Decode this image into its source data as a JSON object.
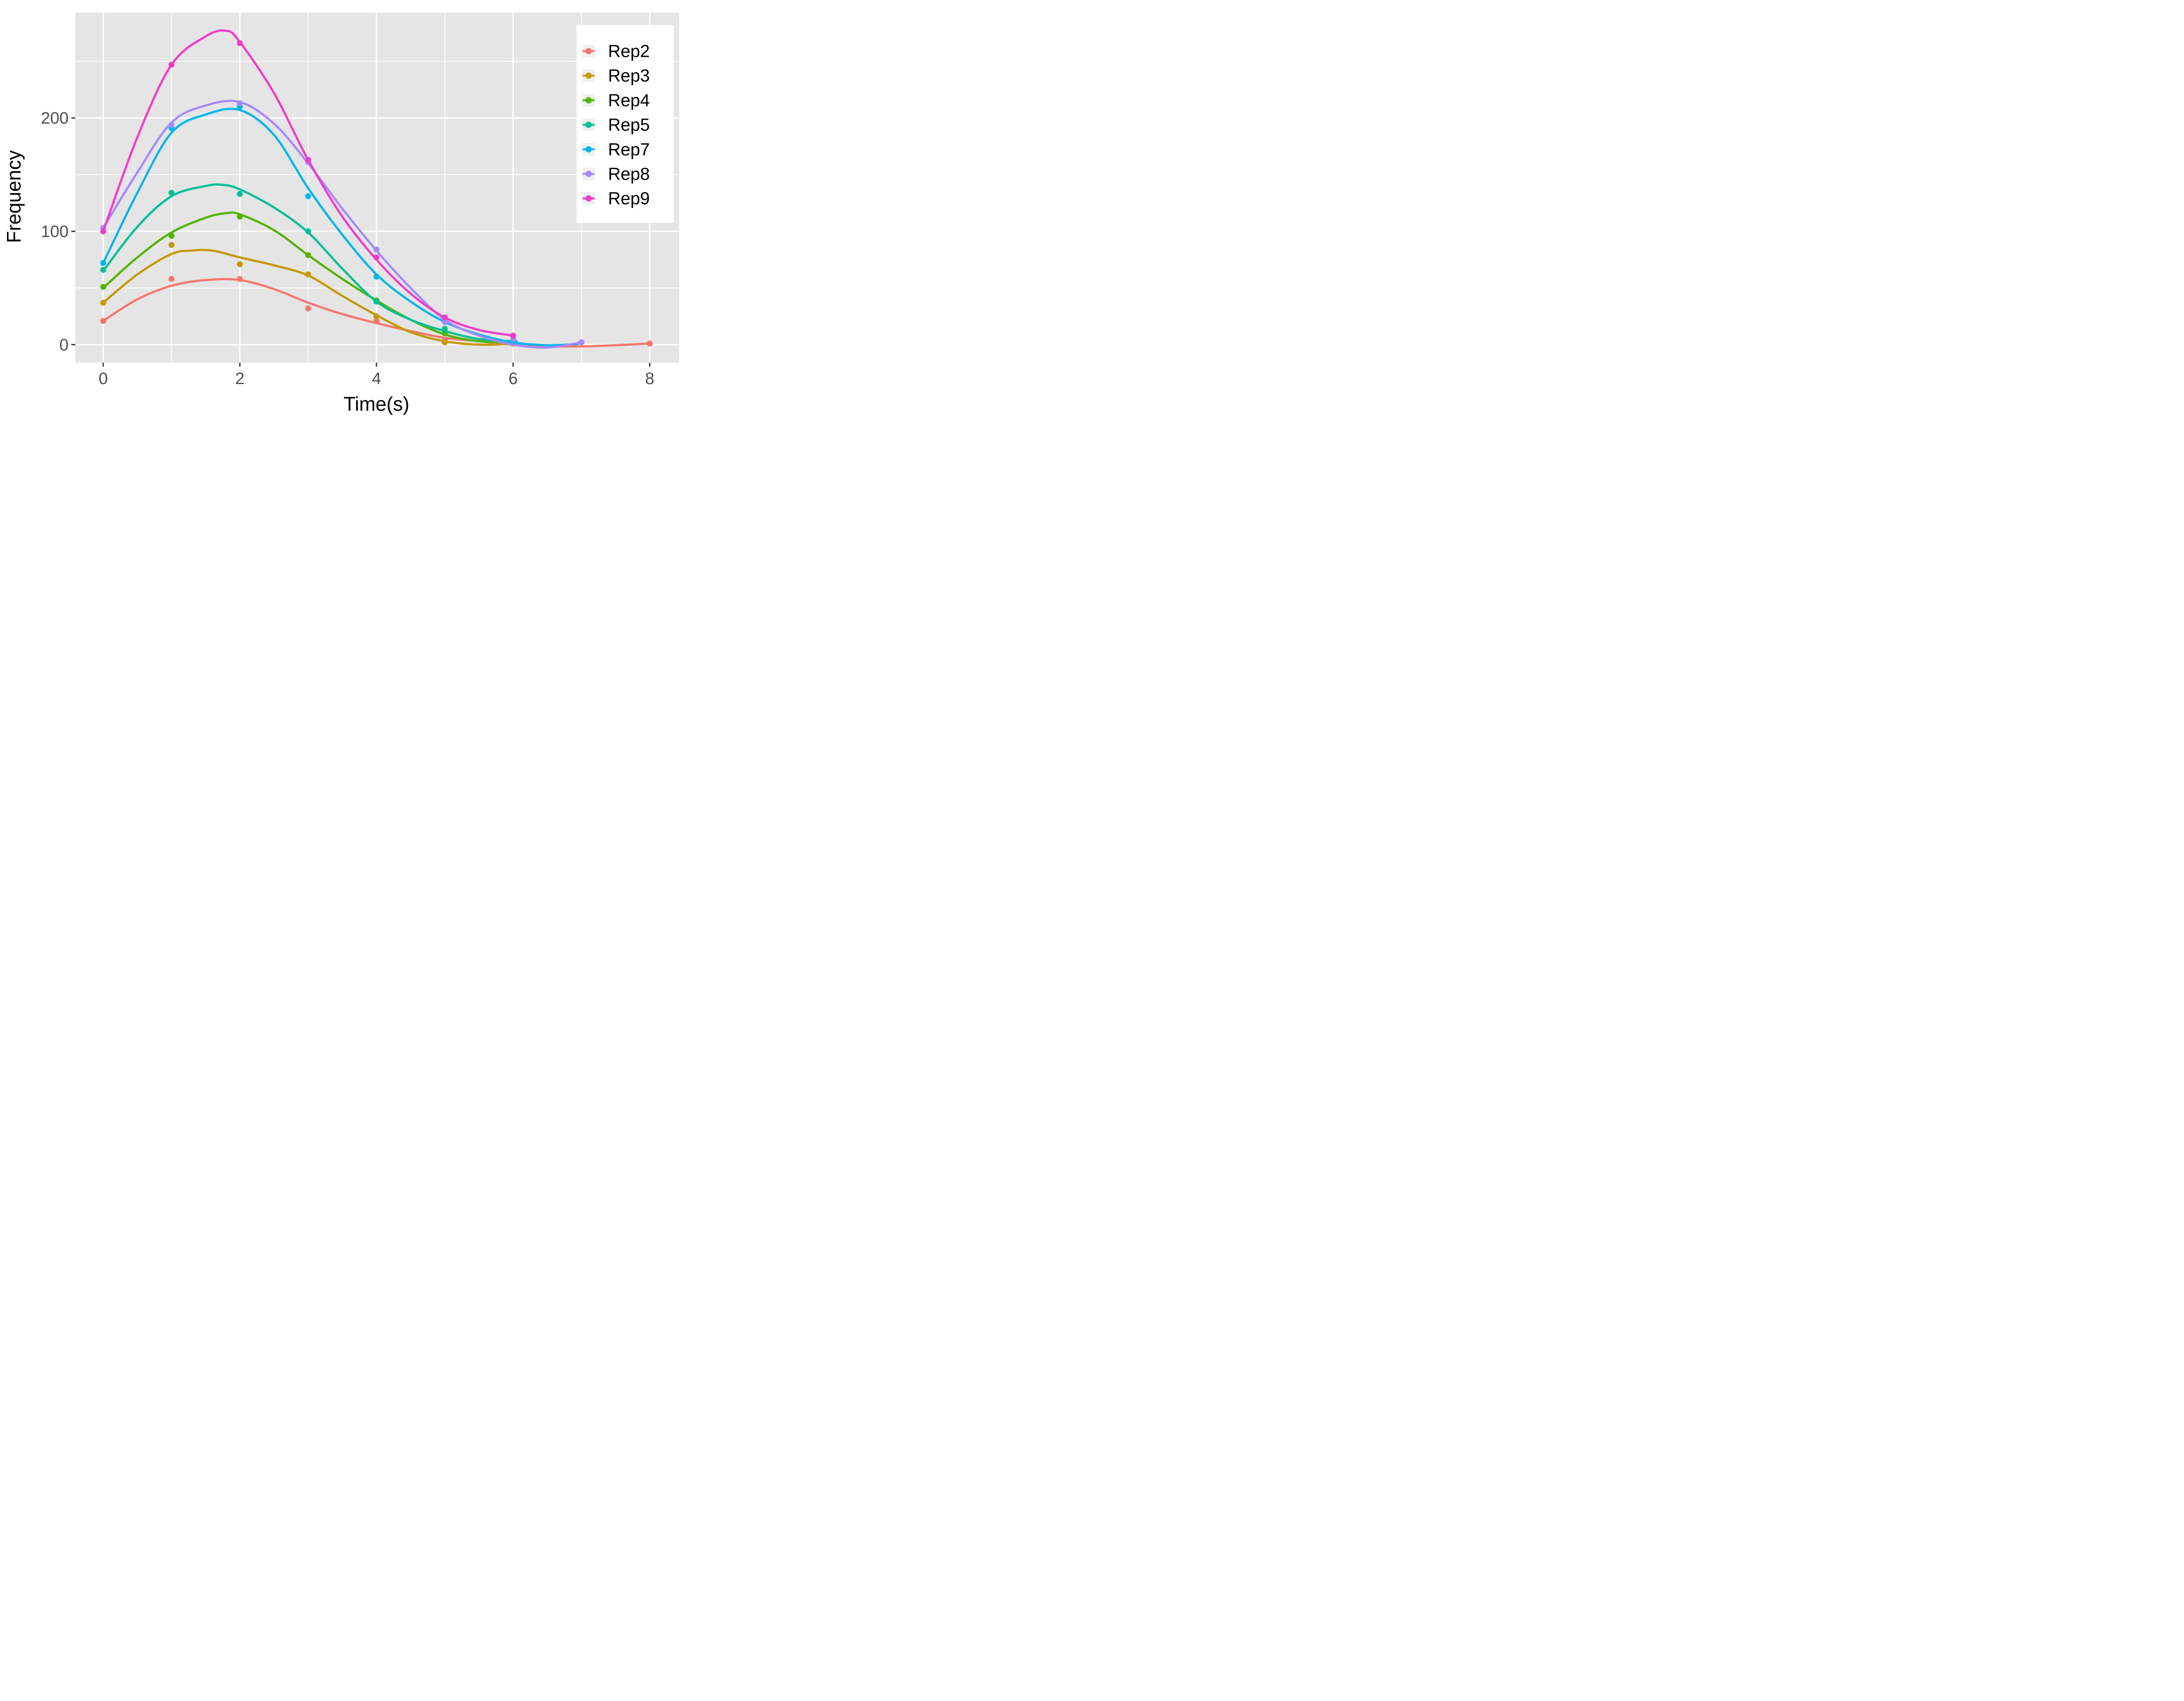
{
  "figure": {
    "kind": "ggplot-smooth-scatter",
    "background": "#FFFFFF",
    "panel_fill": "#E5E5E5",
    "grid_color": "#FFFFFF",
    "tick_color": "#333333",
    "tick_label_color": "#4D4D4D",
    "axis_title_color": "#000000"
  },
  "chart_data": {
    "type": "line",
    "title": "",
    "xlabel": "Time(s)",
    "ylabel": "Frequency",
    "xlim": [
      -0.41,
      8.43
    ],
    "ylim": [
      -16,
      293
    ],
    "xticks": [
      0,
      2,
      4,
      6,
      8
    ],
    "yticks": [
      0,
      100,
      200
    ],
    "xticks_minor": [
      1,
      3,
      5,
      7
    ],
    "yticks_minor": [
      50,
      150,
      250
    ],
    "grid": "major-and-minor",
    "legend_position": "inside-top-right",
    "legend_key_fill": "#F0F0F0",
    "legend_bg": "#FFFFFF",
    "series": [
      {
        "name": "Rep2",
        "color": "#F8766D",
        "points": [
          [
            0,
            21
          ],
          [
            1,
            58
          ],
          [
            2,
            58
          ],
          [
            3,
            32
          ],
          [
            4,
            21
          ],
          [
            5,
            4
          ],
          [
            8,
            1
          ]
        ],
        "curve": [
          [
            0,
            21
          ],
          [
            0.5,
            40
          ],
          [
            1,
            52
          ],
          [
            1.5,
            57
          ],
          [
            2,
            57
          ],
          [
            2.5,
            49
          ],
          [
            3,
            37
          ],
          [
            3.5,
            27
          ],
          [
            4,
            19
          ],
          [
            4.5,
            12
          ],
          [
            5,
            6
          ],
          [
            5.5,
            3
          ],
          [
            6,
            0
          ],
          [
            6.5,
            -1.5
          ],
          [
            7,
            -1.5
          ],
          [
            7.5,
            -0.5
          ],
          [
            8,
            1
          ]
        ]
      },
      {
        "name": "Rep3",
        "color": "#C49A00",
        "points": [
          [
            0,
            37
          ],
          [
            1,
            88
          ],
          [
            2,
            71
          ],
          [
            3,
            62
          ],
          [
            4,
            25
          ],
          [
            5,
            2
          ],
          [
            6,
            1
          ]
        ],
        "curve": [
          [
            0,
            37
          ],
          [
            0.5,
            62
          ],
          [
            1,
            80
          ],
          [
            1.3,
            83
          ],
          [
            1.6,
            83
          ],
          [
            2,
            77
          ],
          [
            2.5,
            70
          ],
          [
            3,
            61
          ],
          [
            3.5,
            43
          ],
          [
            4,
            26
          ],
          [
            4.5,
            11
          ],
          [
            5,
            3
          ],
          [
            5.5,
            0
          ],
          [
            6.05,
            1
          ]
        ]
      },
      {
        "name": "Rep4",
        "color": "#53B400",
        "points": [
          [
            0,
            51
          ],
          [
            1,
            96
          ],
          [
            2,
            113
          ],
          [
            3,
            79
          ],
          [
            4,
            39
          ],
          [
            5,
            10
          ],
          [
            6,
            3
          ]
        ],
        "curve": [
          [
            0,
            50
          ],
          [
            0.5,
            77
          ],
          [
            1,
            99
          ],
          [
            1.5,
            112
          ],
          [
            1.8,
            116
          ],
          [
            2,
            115
          ],
          [
            2.5,
            101
          ],
          [
            3,
            79
          ],
          [
            3.5,
            58
          ],
          [
            4,
            39
          ],
          [
            4.5,
            22
          ],
          [
            5,
            9
          ],
          [
            5.5,
            3
          ],
          [
            6.05,
            2
          ]
        ]
      },
      {
        "name": "Rep5",
        "color": "#00C094",
        "points": [
          [
            0,
            66
          ],
          [
            1,
            134
          ],
          [
            2,
            133
          ],
          [
            3,
            100
          ],
          [
            4,
            38
          ],
          [
            5,
            14
          ],
          [
            6,
            4
          ]
        ],
        "curve": [
          [
            0,
            65
          ],
          [
            0.5,
            104
          ],
          [
            1,
            131
          ],
          [
            1.5,
            140
          ],
          [
            1.75,
            141
          ],
          [
            2,
            137
          ],
          [
            2.5,
            121
          ],
          [
            3,
            99
          ],
          [
            3.5,
            67
          ],
          [
            4,
            38
          ],
          [
            4.5,
            22
          ],
          [
            5,
            12
          ],
          [
            5.5,
            5
          ],
          [
            6.05,
            3
          ]
        ]
      },
      {
        "name": "Rep7",
        "color": "#00B6EB",
        "points": [
          [
            0,
            72
          ],
          [
            1,
            191
          ],
          [
            2,
            210
          ],
          [
            3,
            131
          ],
          [
            4,
            60
          ],
          [
            6,
            3
          ]
        ],
        "curve": [
          [
            0,
            72
          ],
          [
            0.5,
            134
          ],
          [
            1,
            187
          ],
          [
            1.5,
            203
          ],
          [
            2,
            207
          ],
          [
            2.5,
            185
          ],
          [
            3,
            138
          ],
          [
            3.5,
            97
          ],
          [
            4,
            62
          ],
          [
            4.5,
            38
          ],
          [
            5,
            20
          ],
          [
            5.5,
            9
          ],
          [
            6,
            2
          ],
          [
            6.5,
            -0.5
          ],
          [
            6.95,
            0.5
          ]
        ]
      },
      {
        "name": "Rep8",
        "color": "#A58AFF",
        "points": [
          [
            0,
            103
          ],
          [
            1,
            194
          ],
          [
            2,
            213
          ],
          [
            3,
            161
          ],
          [
            4,
            84
          ],
          [
            5,
            20
          ],
          [
            6,
            5
          ],
          [
            7,
            2
          ]
        ],
        "curve": [
          [
            0,
            103
          ],
          [
            0.5,
            152
          ],
          [
            1,
            196
          ],
          [
            1.5,
            211
          ],
          [
            2,
            214
          ],
          [
            2.5,
            195
          ],
          [
            3,
            160
          ],
          [
            3.5,
            120
          ],
          [
            4,
            83
          ],
          [
            4.5,
            50
          ],
          [
            5,
            22
          ],
          [
            5.5,
            8
          ],
          [
            6,
            0
          ],
          [
            6.5,
            -2.5
          ],
          [
            7,
            2
          ]
        ]
      },
      {
        "name": "Rep9",
        "color": "#F23BC9",
        "points": [
          [
            0,
            100
          ],
          [
            1,
            247
          ],
          [
            2,
            266
          ],
          [
            3,
            163
          ],
          [
            4,
            77
          ],
          [
            5,
            24
          ],
          [
            6,
            8
          ]
        ],
        "curve": [
          [
            0,
            100
          ],
          [
            0.5,
            183
          ],
          [
            1,
            247
          ],
          [
            1.5,
            272
          ],
          [
            1.8,
            277
          ],
          [
            2,
            267
          ],
          [
            2.5,
            222
          ],
          [
            3,
            163
          ],
          [
            3.5,
            113
          ],
          [
            4,
            75
          ],
          [
            4.5,
            45
          ],
          [
            5,
            24
          ],
          [
            5.5,
            13
          ],
          [
            6,
            8
          ]
        ]
      }
    ]
  },
  "legend": {
    "labels": [
      "Rep2",
      "Rep3",
      "Rep4",
      "Rep5",
      "Rep7",
      "Rep8",
      "Rep9"
    ]
  }
}
